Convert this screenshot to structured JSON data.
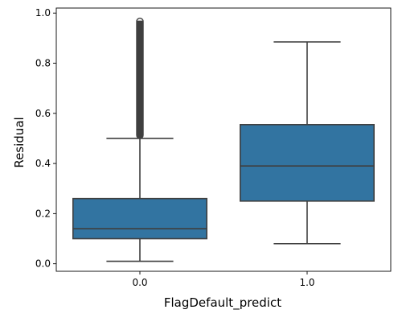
{
  "chart_data": {
    "type": "box",
    "title": "",
    "xlabel": "FlagDefault_predict",
    "ylabel": "Residual",
    "categories": [
      "0.0",
      "1.0"
    ],
    "ylim": [
      -0.03,
      1.02
    ],
    "yticks": [
      0.0,
      0.2,
      0.4,
      0.6,
      0.8,
      1.0
    ],
    "ytick_labels": [
      "0.0",
      "0.2",
      "0.4",
      "0.6",
      "0.8",
      "1.0"
    ],
    "grid": false,
    "color": "#3274a1",
    "edge_color": "#3f3f3f",
    "boxes": [
      {
        "category": "0.0",
        "whisker_low": 0.01,
        "q1": 0.1,
        "median": 0.14,
        "q3": 0.26,
        "whisker_high": 0.5,
        "outliers_range": [
          0.5,
          0.97
        ]
      },
      {
        "category": "1.0",
        "whisker_low": 0.08,
        "q1": 0.25,
        "median": 0.39,
        "q3": 0.555,
        "whisker_high": 0.885,
        "outliers_range": []
      }
    ]
  }
}
